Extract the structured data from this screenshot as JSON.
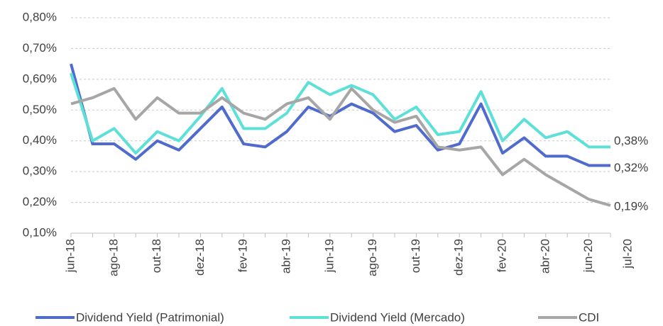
{
  "chart_data": {
    "type": "line",
    "categories": [
      "jun-18",
      null,
      "ago-18",
      null,
      "out-18",
      null,
      "dez-18",
      null,
      "fev-19",
      null,
      "abr-19",
      null,
      "jun-19",
      null,
      "ago-19",
      null,
      "out-19",
      null,
      "dez-19",
      null,
      "fev-20",
      null,
      "abr-20",
      null,
      "jun-20",
      "jul-20"
    ],
    "series": [
      {
        "name": "Dividend Yield (Patrimonial)",
        "color": "#4f6bcd",
        "values": [
          0.65,
          0.39,
          0.39,
          0.34,
          0.4,
          0.37,
          0.44,
          0.51,
          0.39,
          0.38,
          0.43,
          0.51,
          0.48,
          0.52,
          0.49,
          0.43,
          0.45,
          0.37,
          0.39,
          0.52,
          0.36,
          0.41,
          0.35,
          0.35,
          0.32,
          0.32
        ],
        "value_labels": [
          null,
          null,
          null,
          null,
          null,
          null,
          null,
          null,
          null,
          null,
          null,
          null,
          null,
          null,
          null,
          null,
          null,
          null,
          null,
          null,
          null,
          null,
          null,
          null,
          null,
          "0,32%"
        ]
      },
      {
        "name": "Dividend Yield (Mercado)",
        "color": "#5ce0d8",
        "values": [
          0.62,
          0.4,
          0.44,
          0.36,
          0.43,
          0.4,
          0.48,
          0.57,
          0.44,
          0.44,
          0.49,
          0.59,
          0.55,
          0.58,
          0.55,
          0.47,
          0.51,
          0.42,
          0.43,
          0.56,
          0.4,
          0.47,
          0.41,
          0.43,
          0.38,
          0.38
        ],
        "value_labels": [
          null,
          null,
          null,
          null,
          null,
          null,
          null,
          null,
          null,
          null,
          null,
          null,
          null,
          null,
          null,
          null,
          null,
          null,
          null,
          null,
          null,
          null,
          null,
          null,
          null,
          "0,38%"
        ]
      },
      {
        "name": "CDI",
        "color": "#a6a6a6",
        "values": [
          0.52,
          0.54,
          0.57,
          0.47,
          0.54,
          0.49,
          0.49,
          0.54,
          0.49,
          0.47,
          0.52,
          0.54,
          0.47,
          0.57,
          0.5,
          0.46,
          0.48,
          0.38,
          0.37,
          0.38,
          0.29,
          0.34,
          0.29,
          0.25,
          0.21,
          0.19
        ],
        "value_labels": [
          null,
          null,
          null,
          null,
          null,
          null,
          null,
          null,
          null,
          null,
          null,
          null,
          null,
          null,
          null,
          null,
          null,
          null,
          null,
          null,
          null,
          null,
          null,
          null,
          null,
          "0,19%"
        ]
      }
    ],
    "ylim": [
      0.1,
      0.8
    ],
    "yticks": [
      {
        "value": 0.1,
        "label": "0,10%"
      },
      {
        "value": 0.2,
        "label": "0,20%"
      },
      {
        "value": 0.3,
        "label": "0,30%"
      },
      {
        "value": 0.4,
        "label": "0,40%"
      },
      {
        "value": 0.5,
        "label": "0,50%"
      },
      {
        "value": 0.6,
        "label": "0,60%"
      },
      {
        "value": 0.7,
        "label": "0,70%"
      },
      {
        "value": 0.8,
        "label": "0,80%"
      }
    ],
    "grid": true,
    "legend": "bottom"
  }
}
